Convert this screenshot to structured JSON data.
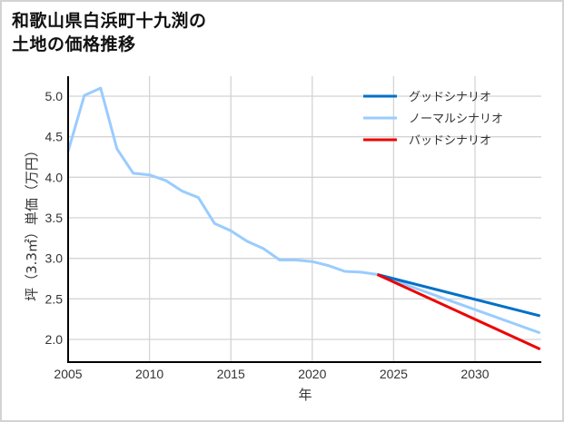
{
  "title_lines": [
    "和歌山県白浜町十九渕の",
    "土地の価格推移"
  ],
  "chart_data": {
    "type": "line",
    "title": "和歌山県白浜町十九渕の土地の価格推移",
    "xlabel": "年",
    "ylabel": "坪（3.3㎡）単価（万円）",
    "xlim": [
      2005,
      2034
    ],
    "ylim": [
      1.72,
      5.25
    ],
    "xticks": [
      2005,
      2010,
      2015,
      2020,
      2025,
      2030
    ],
    "yticks": [
      2.0,
      2.5,
      3.0,
      3.5,
      4.0,
      4.5,
      5.0
    ],
    "ytick_labels": [
      "2.0",
      "2.5",
      "3.0",
      "3.5",
      "4.0",
      "4.5",
      "5.0"
    ],
    "grid": true,
    "legend_position": "upper right",
    "series": [
      {
        "name": "グッドシナリオ",
        "color": "#0070c8",
        "x": [
          2024,
          2034
        ],
        "values": [
          2.8,
          2.29
        ]
      },
      {
        "name": "ノーマルシナリオ",
        "color": "#99ccff",
        "x": [
          2005,
          2006,
          2007,
          2008,
          2009,
          2010,
          2011,
          2012,
          2013,
          2014,
          2015,
          2016,
          2017,
          2018,
          2019,
          2020,
          2021,
          2022,
          2023,
          2024,
          2034
        ],
        "values": [
          4.32,
          5.01,
          5.1,
          4.35,
          4.05,
          4.03,
          3.96,
          3.83,
          3.75,
          3.43,
          3.34,
          3.21,
          3.12,
          2.98,
          2.98,
          2.96,
          2.91,
          2.84,
          2.83,
          2.8,
          2.08
        ]
      },
      {
        "name": "バッドシナリオ",
        "color": "#ee0000",
        "x": [
          2024,
          2034
        ],
        "values": [
          2.8,
          1.88
        ]
      }
    ]
  }
}
